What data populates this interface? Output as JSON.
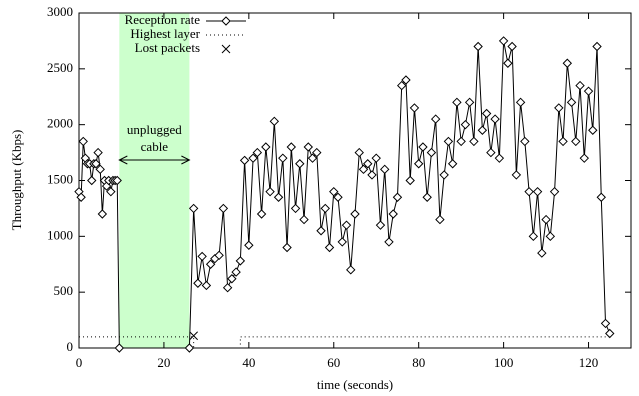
{
  "chart_data": {
    "type": "line",
    "x_label": "time (seconds)",
    "y_label": "Throughput (Kbps)",
    "xlim": [
      0,
      130
    ],
    "ylim": [
      0,
      3000
    ],
    "xticks": [
      0,
      20,
      40,
      60,
      80,
      100,
      120
    ],
    "yticks": [
      0,
      500,
      1000,
      1500,
      2000,
      2500,
      3000
    ],
    "grid": false,
    "legend": "top-left",
    "shaded_region": {
      "x0": 9.5,
      "x1": 26,
      "color": "#ccffcc"
    },
    "annotation": {
      "lines": [
        "unplugged",
        "cable"
      ],
      "x0": 9.5,
      "x1": 26
    },
    "series": [
      {
        "name": "Reception rate",
        "color": "#000000",
        "style": "line-diamond",
        "x": [
          0,
          0.5,
          1,
          1.5,
          2,
          2.5,
          3,
          3.5,
          4,
          4.5,
          5,
          5.5,
          6,
          6.5,
          7,
          7.5,
          8,
          8.5,
          9,
          9.5,
          26,
          27,
          28,
          29,
          30,
          31,
          32,
          33,
          34,
          35,
          36,
          37,
          38,
          39,
          40,
          41,
          42,
          43,
          44,
          45,
          46,
          47,
          48,
          49,
          50,
          51,
          52,
          53,
          54,
          55,
          56,
          57,
          58,
          59,
          60,
          61,
          62,
          63,
          64,
          65,
          66,
          67,
          68,
          69,
          70,
          71,
          72,
          73,
          74,
          75,
          76,
          77,
          78,
          79,
          80,
          81,
          82,
          83,
          84,
          85,
          86,
          87,
          88,
          89,
          90,
          91,
          92,
          93,
          94,
          95,
          96,
          97,
          98,
          99,
          100,
          101,
          102,
          103,
          104,
          105,
          106,
          107,
          108,
          109,
          110,
          111,
          112,
          113,
          114,
          115,
          116,
          117,
          118,
          119,
          120,
          121,
          122,
          123,
          124,
          125
        ],
        "values": [
          1400,
          1350,
          1850,
          1700,
          1650,
          1650,
          1500,
          1650,
          1650,
          1750,
          1600,
          1200,
          1500,
          1450,
          1500,
          1400,
          1500,
          1500,
          1500,
          0,
          0,
          1250,
          580,
          820,
          560,
          750,
          800,
          830,
          1250,
          540,
          620,
          680,
          780,
          1680,
          920,
          1700,
          1750,
          1200,
          1800,
          1400,
          2030,
          1350,
          1700,
          900,
          1800,
          1250,
          1650,
          1150,
          1800,
          1700,
          1750,
          1050,
          1250,
          900,
          1400,
          1350,
          950,
          1100,
          700,
          1200,
          1750,
          1600,
          1650,
          1550,
          1700,
          1100,
          1600,
          950,
          1200,
          1350,
          2350,
          2400,
          1500,
          2150,
          1650,
          1800,
          1350,
          1750,
          2050,
          1150,
          1550,
          1850,
          1650,
          2200,
          1850,
          2000,
          2200,
          1850,
          2700,
          1950,
          2100,
          1750,
          2050,
          1700,
          2750,
          2550,
          2700,
          1550,
          2200,
          1850,
          1400,
          1000,
          1400,
          850,
          1150,
          1000,
          1400,
          2150,
          1850,
          2550,
          2200,
          1850,
          2350,
          1700,
          2300,
          1950,
          2700,
          1350,
          220,
          130
        ]
      },
      {
        "name": "Highest layer",
        "color": "#000000",
        "style": "dotted",
        "x": [
          0,
          27,
          27,
          38,
          38,
          125
        ],
        "values": [
          100,
          100,
          0,
          0,
          100,
          100
        ]
      },
      {
        "name": "Lost packets",
        "color": "#000000",
        "style": "cross",
        "x": [
          27
        ],
        "values": [
          110
        ]
      }
    ]
  }
}
